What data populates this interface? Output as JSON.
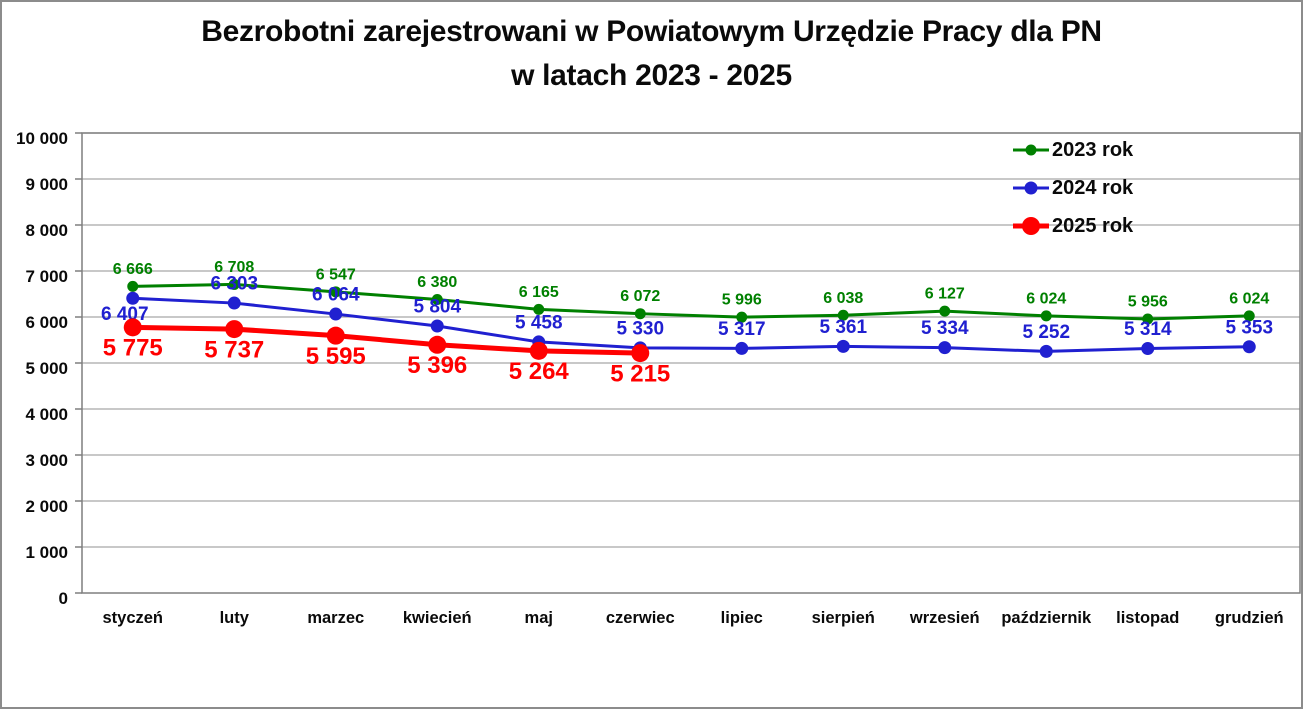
{
  "chart_data": {
    "type": "line",
    "title": "Bezrobotni zarejestrowani w Powiatowym Urzędzie Pracy dla PN",
    "subtitle": "w latach 2023 - 2025",
    "categories": [
      "styczeń",
      "luty",
      "marzec",
      "kwiecień",
      "maj",
      "czerwiec",
      "lipiec",
      "sierpień",
      "wrzesień",
      "październik",
      "listopad",
      "grudzień"
    ],
    "series": [
      {
        "name": "2023 rok",
        "color": "#008000",
        "line_width": 3,
        "marker_radius": 5.5,
        "label_font_size": 16,
        "label_side": "above",
        "values": [
          6666,
          6708,
          6547,
          6380,
          6165,
          6072,
          5996,
          6038,
          6127,
          6024,
          5956,
          6024
        ]
      },
      {
        "name": "2024 rok",
        "color": "#2020D0",
        "line_width": 3,
        "marker_radius": 6.5,
        "label_font_size": 19,
        "label_side": "above",
        "label_side_overrides": {
          "0": "below"
        },
        "label_dx_overrides": {
          "0": -8
        },
        "values": [
          6407,
          6303,
          6064,
          5804,
          5458,
          5330,
          5317,
          5361,
          5334,
          5252,
          5314,
          5353
        ]
      },
      {
        "name": "2025 rok",
        "color": "#FF0000",
        "line_width": 5,
        "marker_radius": 9,
        "label_font_size": 24,
        "label_side": "below",
        "values": [
          5775,
          5737,
          5595,
          5396,
          5264,
          5215
        ]
      }
    ],
    "ylim": [
      0,
      10000
    ],
    "ytick_step": 1000,
    "yticks": [
      "0",
      "1 000",
      "2 000",
      "3 000",
      "4 000",
      "5 000",
      "6 000",
      "7 000",
      "8 000",
      "9 000",
      "10 000"
    ],
    "xlabel": "",
    "ylabel": "",
    "grid": true,
    "legend_position": "top-right",
    "number_format": "space-thousands"
  },
  "style": {
    "frame_border": "#8c8c8c",
    "plot_border": "#7f7f7f",
    "gridline": "#a8a8a8",
    "text": "#0a0a0a",
    "background": "#ffffff"
  }
}
